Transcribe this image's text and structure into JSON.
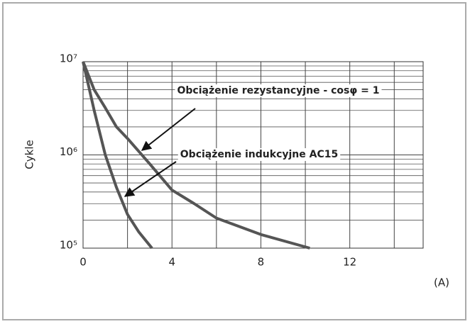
{
  "chart_data": {
    "type": "line",
    "y_label": "Cykle",
    "x_label": "(A)",
    "xlim": [
      0,
      15.3
    ],
    "xticks": [
      0,
      4,
      8,
      12
    ],
    "xgrid": [
      2,
      6,
      10,
      14
    ],
    "ylim": [
      100000,
      10000000
    ],
    "log_y": true,
    "grid": true,
    "yticks": [
      {
        "value": 100000,
        "label": "10⁵"
      },
      {
        "value": 1000000,
        "label": "10⁶"
      },
      {
        "value": 10000000,
        "label": "10⁷"
      }
    ],
    "series": [
      {
        "name": "Obciążenie rezystancyjne - cosφ = 1",
        "color": "#555555",
        "x": [
          0,
          0.5,
          1,
          1.5,
          2,
          3,
          4,
          5,
          6,
          8,
          10.2
        ],
        "values": [
          10000000,
          5000000,
          3200000,
          2000000,
          1500000,
          800000,
          420000,
          300000,
          210000,
          140000,
          100000
        ]
      },
      {
        "name": "Obciążenie indukcyjne AC15",
        "color": "#555555",
        "x": [
          0,
          0.5,
          1,
          1.5,
          2,
          2.5,
          3.1
        ],
        "values": [
          10000000,
          3000000,
          1000000,
          450000,
          230000,
          150000,
          100000
        ]
      }
    ]
  }
}
